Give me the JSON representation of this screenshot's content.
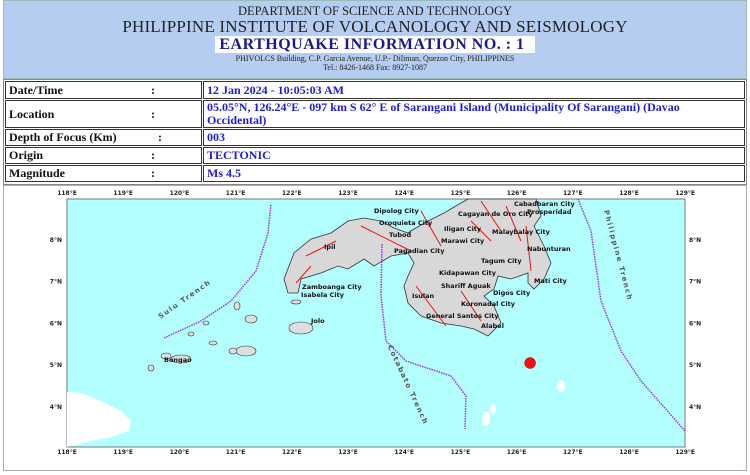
{
  "header": {
    "department": "DEPARTMENT OF SCIENCE AND TECHNOLOGY",
    "institute": "PHILIPPINE INSTITUTE OF VOLCANOLOGY AND SEISMOLOGY",
    "title": "EARTHQUAKE INFORMATION NO. :  1",
    "address": "PHIVOLCS Building, C.P. Garcia Avenue, U.P.- Diliman, Quezon City, PHILIPPINES",
    "contact": "Tel.: 8426-1468  Fax: 8927-1087"
  },
  "details": [
    {
      "label": "Date/Time",
      "colon": ":",
      "value": "12 Jan 2024 - 10:05:03 AM"
    },
    {
      "label": "Location",
      "colon": ":",
      "value": "05.05°N, 126.24°E - 097 km S 62° E of Sarangani Island (Municipality Of Sarangani) (Davao Occidental)"
    },
    {
      "label": "Depth of Focus (Km)",
      "colon": ":",
      "value": "003"
    },
    {
      "label": "Origin",
      "colon": ":",
      "value": "TECTONIC"
    },
    {
      "label": "Magnitude",
      "colon": ":",
      "value": "Ms 4.5"
    }
  ],
  "map": {
    "lon_labels": [
      "118°E",
      "119°E",
      "120°E",
      "121°E",
      "122°E",
      "123°E",
      "124°E",
      "125°E",
      "126°E",
      "127°E",
      "128°E",
      "129°E"
    ],
    "lat_labels": [
      "8°N",
      "7°N",
      "6°N",
      "5°N",
      "4°N"
    ],
    "epicenter": {
      "lat": 5.05,
      "lon": 126.24,
      "color": "#ee1111"
    },
    "sea_color": "#b3ffff",
    "trench_color": "#9933ff",
    "fault_color": "#ee1111",
    "trenches": [
      "Sulu Trench",
      "Cotabato Trench",
      "Philippine Trench"
    ],
    "cities": [
      "Dipolog City",
      "Cagayan de Oro City",
      "Cabadbaran City",
      "Prosperidad",
      "Oroquieta City",
      "Iligan City",
      "Malaybalay City",
      "Tubod",
      "Marawi City",
      "Nabunturan",
      "Ipil",
      "Pagadian City",
      "Tagum City",
      "Kidapawan City",
      "Mati City",
      "Zamboanga City",
      "Shariff Aguak",
      "Isabela City",
      "Digos City",
      "Isulan",
      "Koronadal City",
      "General Santos City",
      "Alabel",
      "Jolo",
      "Bongao"
    ]
  }
}
